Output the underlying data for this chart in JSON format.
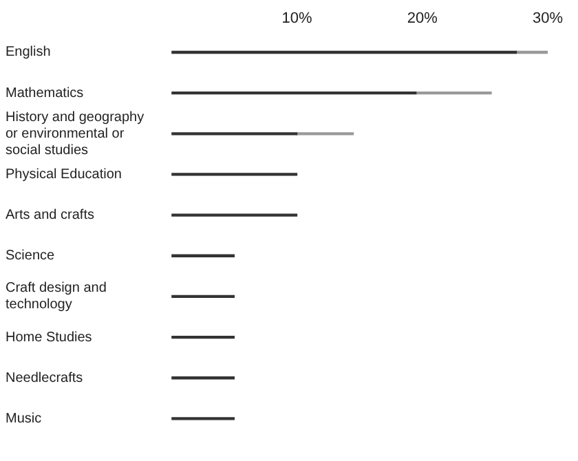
{
  "chart_data": {
    "type": "bar",
    "orientation": "horizontal",
    "stacked": true,
    "categories": [
      "English",
      "Mathematics",
      "History and geography or environmental or social studies",
      "Physical Education",
      "Arts and crafts",
      "Science",
      "Craft design and technology",
      "Home Studies",
      "Needlecrafts",
      "Music"
    ],
    "series": [
      {
        "color": "#333333",
        "values": [
          27.5,
          19.5,
          10,
          10,
          10,
          5,
          5,
          5,
          5,
          5
        ]
      },
      {
        "color": "#999999",
        "values": [
          2.5,
          6,
          4.5,
          null,
          null,
          null,
          null,
          null,
          null,
          null
        ]
      }
    ],
    "xlim": [
      0,
      30
    ],
    "xticks": [
      {
        "value": 10,
        "label": "10%"
      },
      {
        "value": 20,
        "label": "20%"
      },
      {
        "value": 30,
        "label": "30%"
      }
    ],
    "grid": false,
    "legend": false
  }
}
